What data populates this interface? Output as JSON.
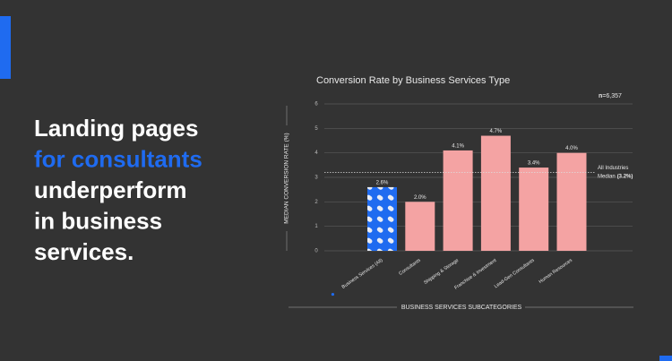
{
  "headline": {
    "lines": [
      "Landing pages",
      "for consultants",
      "underperform",
      "in business",
      "services."
    ],
    "highlight_color": "#1f6bf0"
  },
  "chart_data": {
    "type": "bar",
    "title": "Conversion Rate by Business Services Type",
    "note_prefix": "n",
    "note": "=6,357",
    "categories": [
      "Business Services (All)",
      "Consultants",
      "Shipping & Storage",
      "Franchise & Investment",
      "Lead-Gen Consultants",
      "Human Resources"
    ],
    "values": [
      2.6,
      2.0,
      4.1,
      4.7,
      3.4,
      4.0
    ],
    "value_labels": [
      "2.6%",
      "2.0%",
      "4.1%",
      "4.7%",
      "3.4%",
      "4.0%"
    ],
    "colors": [
      "#1f6bf0",
      "#f4a3a3",
      "#f4a3a3",
      "#f4a3a3",
      "#f4a3a3",
      "#f4a3a3"
    ],
    "patterned": [
      true,
      false,
      false,
      false,
      false,
      false
    ],
    "ylim": [
      0,
      6
    ],
    "yticks": [
      0,
      1,
      2,
      3,
      4,
      5,
      6
    ],
    "grid": true,
    "y_label": "MEDIAN CONVERSION RATE (%)",
    "x_label": "BUSINESS SERVICES SUBCATEGORIES",
    "median": {
      "value": 3.2,
      "line1": "All Industries",
      "line2": "Median",
      "value_label": "(3.2%)"
    }
  }
}
